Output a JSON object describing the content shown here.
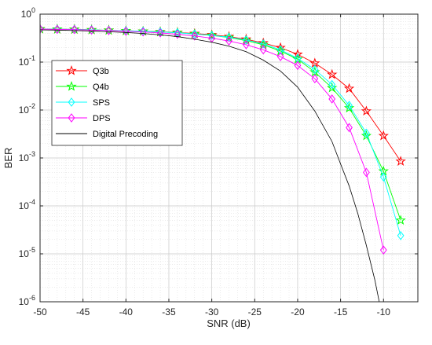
{
  "chart_data": {
    "type": "line",
    "xlabel": "SNR (dB)",
    "ylabel": "BER",
    "xlim": [
      -50,
      -6
    ],
    "ylim": [
      1e-06,
      1
    ],
    "y_scale": "log",
    "grid": true,
    "minor_grid": true,
    "legend_position": "upper-left",
    "x_ticks": [
      -50,
      -45,
      -40,
      -35,
      -30,
      -25,
      -20,
      -15,
      -10
    ],
    "x_tick_labels": [
      "-50",
      "-45",
      "-40",
      "-35",
      "-30",
      "-25",
      "-20",
      "-15",
      "-10"
    ],
    "y_ticks": [
      1,
      0.1,
      0.01,
      0.001,
      0.0001,
      1e-05,
      1e-06
    ],
    "y_tick_labels": [
      {
        "base": "10",
        "exp": "0"
      },
      {
        "base": "10",
        "exp": "-1"
      },
      {
        "base": "10",
        "exp": "-2"
      },
      {
        "base": "10",
        "exp": "-3"
      },
      {
        "base": "10",
        "exp": "-4"
      },
      {
        "base": "10",
        "exp": "-5"
      },
      {
        "base": "10",
        "exp": "-6"
      }
    ],
    "series": [
      {
        "name": "Q3b",
        "color": "#ff0000",
        "marker": "pentagram",
        "x": [
          -50,
          -48,
          -46,
          -44,
          -42,
          -40,
          -38,
          -36,
          -34,
          -32,
          -30,
          -28,
          -26,
          -24,
          -22,
          -20,
          -18,
          -16,
          -14,
          -12,
          -10,
          -8
        ],
        "y": [
          0.49,
          0.485,
          0.48,
          0.47,
          0.46,
          0.45,
          0.44,
          0.43,
          0.415,
          0.395,
          0.37,
          0.34,
          0.3,
          0.25,
          0.2,
          0.145,
          0.095,
          0.055,
          0.028,
          0.0095,
          0.0029,
          0.00085
        ]
      },
      {
        "name": "Q4b",
        "color": "#00ff00",
        "marker": "pentagram",
        "x": [
          -50,
          -48,
          -46,
          -44,
          -42,
          -40,
          -38,
          -36,
          -34,
          -32,
          -30,
          -28,
          -26,
          -24,
          -22,
          -20,
          -18,
          -16,
          -14,
          -12,
          -10,
          -8
        ],
        "y": [
          0.49,
          0.485,
          0.48,
          0.47,
          0.46,
          0.45,
          0.44,
          0.425,
          0.41,
          0.385,
          0.36,
          0.325,
          0.28,
          0.23,
          0.17,
          0.115,
          0.062,
          0.029,
          0.011,
          0.0029,
          0.00053,
          5e-05
        ]
      },
      {
        "name": "SPS",
        "color": "#00ffff",
        "marker": "diamond",
        "x": [
          -50,
          -48,
          -46,
          -44,
          -42,
          -40,
          -38,
          -36,
          -34,
          -32,
          -30,
          -28,
          -26,
          -24,
          -22,
          -20,
          -18,
          -16,
          -14,
          -12,
          -10,
          -8
        ],
        "y": [
          0.49,
          0.485,
          0.48,
          0.47,
          0.46,
          0.45,
          0.44,
          0.425,
          0.41,
          0.385,
          0.36,
          0.33,
          0.29,
          0.24,
          0.18,
          0.12,
          0.07,
          0.034,
          0.0125,
          0.0033,
          0.0004,
          2.4e-05
        ]
      },
      {
        "name": "DPS",
        "color": "#ff00ff",
        "marker": "diamond",
        "x": [
          -50,
          -48,
          -46,
          -44,
          -42,
          -40,
          -38,
          -36,
          -34,
          -32,
          -30,
          -28,
          -26,
          -24,
          -22,
          -20,
          -18,
          -16,
          -14,
          -12,
          -10
        ],
        "y": [
          0.49,
          0.48,
          0.475,
          0.465,
          0.455,
          0.44,
          0.425,
          0.405,
          0.38,
          0.35,
          0.315,
          0.275,
          0.23,
          0.18,
          0.13,
          0.085,
          0.045,
          0.017,
          0.0043,
          0.0005,
          1.2e-05
        ]
      },
      {
        "name": "Digital Precoding",
        "color": "#000000",
        "marker": "none",
        "x": [
          -50,
          -48,
          -46,
          -44,
          -42,
          -40,
          -38,
          -36,
          -34,
          -32,
          -30,
          -28,
          -26,
          -24,
          -22,
          -20,
          -18,
          -16,
          -15,
          -14,
          -13,
          -12,
          -11,
          -10.5
        ],
        "y": [
          0.47,
          0.465,
          0.455,
          0.445,
          0.43,
          0.415,
          0.395,
          0.37,
          0.34,
          0.3,
          0.26,
          0.215,
          0.165,
          0.11,
          0.065,
          0.03,
          0.0095,
          0.0022,
          0.00075,
          0.00026,
          7e-05,
          1.5e-05,
          2.8e-06,
          1e-06
        ]
      }
    ]
  }
}
